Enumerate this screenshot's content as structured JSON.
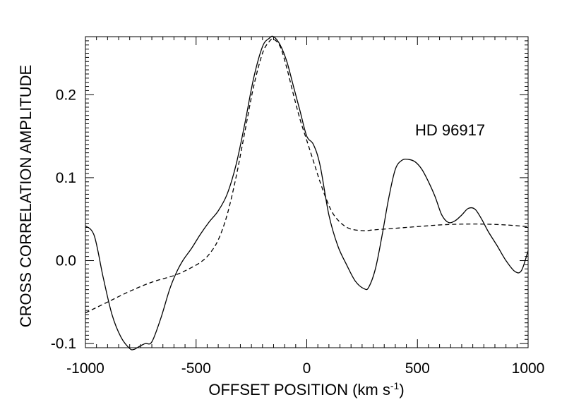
{
  "chart_data": {
    "type": "line",
    "title": "",
    "xlabel": "OFFSET POSITION (km s",
    "xlabel_sup": "-1",
    "xlabel_close": ")",
    "ylabel": "CROSS CORRELATION AMPLITUDE",
    "xlim": [
      -1000,
      1000
    ],
    "ylim": [
      -0.105,
      0.27
    ],
    "xticks": [
      -1000,
      -500,
      0,
      500,
      1000
    ],
    "xtick_labels": [
      "-1000",
      "-500",
      "0",
      "500",
      "1000"
    ],
    "yticks": [
      -0.1,
      0.0,
      0.1,
      0.2
    ],
    "ytick_labels": [
      "-0.1",
      "0.0",
      "0.1",
      "0.2"
    ],
    "grid": false,
    "annotation": "HD 96917",
    "series": [
      {
        "style": "solid",
        "color": "#000000",
        "x": [
          -1000,
          -960,
          -920,
          -880,
          -840,
          -800,
          -780,
          -760,
          -730,
          -700,
          -660,
          -620,
          -590,
          -560,
          -520,
          -480,
          -440,
          -400,
          -360,
          -320,
          -280,
          -240,
          -200,
          -170,
          -150,
          -120,
          -90,
          -60,
          -30,
          0,
          30,
          60,
          100,
          140,
          180,
          220,
          260,
          280,
          310,
          340,
          370,
          400,
          430,
          460,
          490,
          520,
          550,
          580,
          610,
          640,
          670,
          700,
          730,
          760,
          790,
          820,
          860,
          900,
          940,
          970,
          1000
        ],
        "y": [
          0.042,
          0.03,
          -0.02,
          -0.065,
          -0.092,
          -0.106,
          -0.107,
          -0.104,
          -0.1,
          -0.098,
          -0.07,
          -0.035,
          -0.015,
          0.0,
          0.015,
          0.032,
          0.047,
          0.06,
          0.08,
          0.115,
          0.165,
          0.22,
          0.258,
          0.268,
          0.27,
          0.26,
          0.24,
          0.21,
          0.18,
          0.15,
          0.14,
          0.115,
          0.055,
          0.018,
          -0.005,
          -0.025,
          -0.034,
          -0.032,
          -0.01,
          0.03,
          0.075,
          0.11,
          0.121,
          0.122,
          0.119,
          0.11,
          0.095,
          0.077,
          0.055,
          0.046,
          0.048,
          0.055,
          0.063,
          0.062,
          0.05,
          0.035,
          0.018,
          0.0,
          -0.013,
          -0.012,
          0.012
        ]
      },
      {
        "style": "dashed",
        "color": "#000000",
        "x": [
          -1000,
          -900,
          -800,
          -700,
          -600,
          -540,
          -480,
          -440,
          -400,
          -360,
          -320,
          -280,
          -240,
          -200,
          -170,
          -150,
          -120,
          -90,
          -60,
          -30,
          0,
          30,
          60,
          90,
          120,
          160,
          200,
          260,
          300,
          400,
          500,
          600,
          700,
          800,
          900,
          1000
        ],
        "y": [
          -0.063,
          -0.05,
          -0.037,
          -0.026,
          -0.018,
          -0.011,
          -0.002,
          0.008,
          0.025,
          0.055,
          0.1,
          0.155,
          0.21,
          0.25,
          0.264,
          0.267,
          0.258,
          0.232,
          0.2,
          0.17,
          0.145,
          0.12,
          0.095,
          0.073,
          0.056,
          0.044,
          0.038,
          0.036,
          0.037,
          0.039,
          0.041,
          0.043,
          0.044,
          0.044,
          0.043,
          0.041
        ]
      }
    ]
  }
}
